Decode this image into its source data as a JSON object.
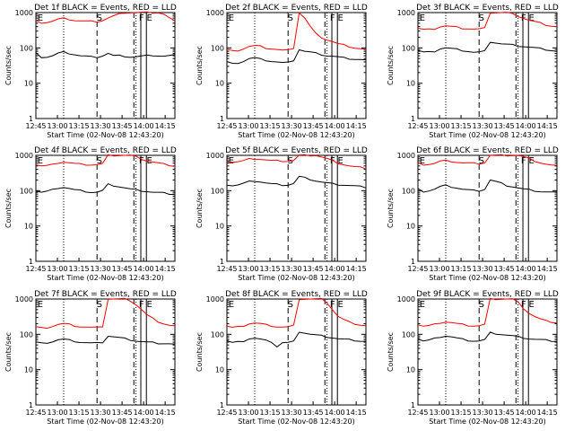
{
  "figure": {
    "background": "#ffffff",
    "axis_color": "#000000",
    "events_color": "#000000",
    "lld_color": "#ff0000"
  },
  "chart_data": [
    {
      "type": "line",
      "title": "Det 1f BLACK = Events, RED = LLD",
      "ylabel": "Counts/sec",
      "xlabel": "Start Time (02-Nov-08 12:43:20)",
      "yscale": "log",
      "ylim": [
        1,
        1000
      ],
      "ytick_labels": [
        "1",
        "10",
        "100",
        "1000"
      ],
      "xtick_labels": [
        "12:45",
        "13:00",
        "13:15",
        "13:30",
        "13:45",
        "14:00",
        "14:15"
      ],
      "markers": [
        "E",
        "S",
        "F",
        "E"
      ],
      "series": [
        {
          "name": "Events",
          "color": "#000000",
          "values": [
            70,
            55,
            55,
            60,
            70,
            75,
            70,
            65,
            60,
            58,
            55,
            55,
            60,
            70,
            60,
            60,
            58,
            55,
            56,
            58,
            60,
            62,
            60,
            58,
            60,
            62
          ]
        },
        {
          "name": "LLD",
          "color": "#ff0000",
          "values": [
            580,
            520,
            530,
            570,
            650,
            680,
            650,
            600,
            580,
            570,
            560,
            560,
            600,
            700,
            800,
            900,
            1000,
            1000,
            1000,
            1000,
            1000,
            1000,
            1000,
            900,
            700,
            560
          ]
        }
      ]
    },
    {
      "type": "line",
      "title": "Det 2f BLACK = Events, RED = LLD",
      "ylabel": "Counts/sec",
      "xlabel": "Start Time (02-Nov-08 12:43:20)",
      "yscale": "log",
      "ylim": [
        1,
        1000
      ],
      "ytick_labels": [
        "1",
        "10",
        "100",
        "1000"
      ],
      "xtick_labels": [
        "12:45",
        "13:00",
        "13:15",
        "13:30",
        "13:45",
        "14:00",
        "14:15"
      ],
      "markers": [
        "E",
        "S",
        "F",
        "E"
      ],
      "series": [
        {
          "name": "Events",
          "color": "#000000",
          "values": [
            40,
            35,
            38,
            42,
            50,
            52,
            48,
            45,
            42,
            40,
            38,
            38,
            45,
            90,
            80,
            75,
            70,
            65,
            60,
            58,
            55,
            52,
            50,
            48,
            47,
            45
          ]
        },
        {
          "name": "LLD",
          "color": "#ff0000",
          "values": [
            90,
            80,
            85,
            95,
            110,
            115,
            110,
            100,
            95,
            90,
            85,
            85,
            100,
            1000,
            700,
            400,
            250,
            200,
            170,
            150,
            130,
            120,
            110,
            100,
            95,
            90
          ]
        }
      ]
    },
    {
      "type": "line",
      "title": "Det 3f BLACK = Events, RED = LLD",
      "ylabel": "Counts/sec",
      "xlabel": "Start Time (02-Nov-08 12:43:20)",
      "yscale": "log",
      "ylim": [
        1,
        1000
      ],
      "ytick_labels": [
        "1",
        "10",
        "100",
        "1000"
      ],
      "xtick_labels": [
        "12:45",
        "13:00",
        "13:15",
        "13:30",
        "13:45",
        "14:00",
        "14:15"
      ],
      "markers": [
        "E",
        "S",
        "F",
        "E"
      ],
      "series": [
        {
          "name": "Events",
          "color": "#000000",
          "values": [
            85,
            75,
            75,
            80,
            95,
            100,
            95,
            90,
            85,
            80,
            75,
            75,
            80,
            150,
            140,
            130,
            125,
            120,
            115,
            110,
            105,
            100,
            95,
            90,
            85,
            80
          ]
        },
        {
          "name": "LLD",
          "color": "#ff0000",
          "values": [
            360,
            330,
            330,
            350,
            400,
            420,
            400,
            380,
            360,
            350,
            340,
            340,
            360,
            1000,
            1000,
            1000,
            1000,
            900,
            800,
            700,
            600,
            550,
            500,
            450,
            420,
            400
          ]
        }
      ]
    },
    {
      "type": "line",
      "title": "Det 4f BLACK = Events, RED = LLD",
      "ylabel": "Counts/sec",
      "xlabel": "Start Time (02-Nov-08 12:43:20)",
      "yscale": "log",
      "ylim": [
        1,
        1000
      ],
      "ytick_labels": [
        "1",
        "10",
        "100",
        "1000"
      ],
      "xtick_labels": [
        "12:45",
        "13:00",
        "13:15",
        "13:30",
        "13:45",
        "14:00",
        "14:15"
      ],
      "markers": [
        "E",
        "S",
        "F",
        "E"
      ],
      "series": [
        {
          "name": "Events",
          "color": "#000000",
          "values": [
            100,
            90,
            95,
            105,
            120,
            125,
            115,
            105,
            100,
            95,
            90,
            90,
            100,
            150,
            140,
            130,
            120,
            110,
            105,
            100,
            95,
            90,
            88,
            85,
            82,
            80
          ]
        },
        {
          "name": "LLD",
          "color": "#ff0000",
          "values": [
            550,
            500,
            510,
            540,
            620,
            650,
            620,
            580,
            560,
            550,
            540,
            540,
            580,
            1000,
            1000,
            1000,
            1000,
            1000,
            900,
            800,
            700,
            650,
            600,
            560,
            530,
            500
          ]
        }
      ]
    },
    {
      "type": "line",
      "title": "Det 5f BLACK = Events, RED = LLD",
      "ylabel": "Counts/sec",
      "xlabel": "Start Time (02-Nov-08 12:43:20)",
      "yscale": "log",
      "ylim": [
        1,
        1000
      ],
      "ytick_labels": [
        "1",
        "10",
        "100",
        "1000"
      ],
      "xtick_labels": [
        "12:45",
        "13:00",
        "13:15",
        "13:30",
        "13:45",
        "14:00",
        "14:15"
      ],
      "markers": [
        "E",
        "S",
        "F",
        "E"
      ],
      "series": [
        {
          "name": "Events",
          "color": "#000000",
          "values": [
            150,
            140,
            145,
            160,
            180,
            190,
            180,
            165,
            155,
            150,
            145,
            145,
            160,
            250,
            230,
            210,
            190,
            175,
            165,
            155,
            150,
            145,
            140,
            135,
            130,
            125
          ]
        },
        {
          "name": "LLD",
          "color": "#ff0000",
          "values": [
            700,
            650,
            660,
            700,
            780,
            800,
            780,
            740,
            710,
            700,
            690,
            690,
            720,
            1000,
            1000,
            1000,
            1000,
            900,
            800,
            700,
            600,
            550,
            500,
            470,
            450,
            430
          ]
        }
      ]
    },
    {
      "type": "line",
      "title": "Det 6f BLACK = Events, RED = LLD",
      "ylabel": "Counts/sec",
      "xlabel": "Start Time (02-Nov-08 12:43:20)",
      "yscale": "log",
      "ylim": [
        1,
        1000
      ],
      "ytick_labels": [
        "1",
        "10",
        "100",
        "1000"
      ],
      "xtick_labels": [
        "12:45",
        "13:00",
        "13:15",
        "13:30",
        "13:45",
        "14:00",
        "14:15"
      ],
      "markers": [
        "E",
        "S",
        "F",
        "E"
      ],
      "series": [
        {
          "name": "Events",
          "color": "#000000",
          "values": [
            110,
            95,
            100,
            110,
            130,
            140,
            130,
            120,
            110,
            105,
            100,
            100,
            110,
            200,
            180,
            160,
            140,
            130,
            120,
            110,
            105,
            100,
            95,
            92,
            90,
            88
          ]
        },
        {
          "name": "LLD",
          "color": "#ff0000",
          "values": [
            600,
            550,
            560,
            590,
            680,
            700,
            680,
            640,
            610,
            600,
            590,
            590,
            620,
            1000,
            1000,
            1000,
            1000,
            1000,
            1000,
            900,
            800,
            700,
            620,
            560,
            520,
            500
          ]
        }
      ]
    },
    {
      "type": "line",
      "title": "Det 7f BLACK = Events, RED = LLD",
      "ylabel": "Counts/sec",
      "xlabel": "Start Time (02-Nov-08 12:43:20)",
      "yscale": "log",
      "ylim": [
        1,
        1000
      ],
      "ytick_labels": [
        "1",
        "10",
        "100",
        "1000"
      ],
      "xtick_labels": [
        "12:45",
        "13:00",
        "13:15",
        "13:30",
        "13:45",
        "14:00",
        "14:15"
      ],
      "markers": [
        "E",
        "S",
        "F",
        "E"
      ],
      "series": [
        {
          "name": "Events",
          "color": "#000000",
          "values": [
            60,
            55,
            58,
            62,
            70,
            72,
            68,
            64,
            60,
            58,
            56,
            56,
            60,
            90,
            85,
            80,
            75,
            70,
            65,
            62,
            60,
            58,
            56,
            55,
            54,
            52
          ]
        },
        {
          "name": "LLD",
          "color": "#ff0000",
          "values": [
            160,
            150,
            155,
            170,
            190,
            200,
            190,
            175,
            165,
            160,
            155,
            155,
            170,
            1000,
            1000,
            1000,
            1000,
            900,
            700,
            500,
            350,
            280,
            230,
            200,
            180,
            170
          ]
        }
      ]
    },
    {
      "type": "line",
      "title": "Det 8f BLACK = Events, RED = LLD",
      "ylabel": "Counts/sec",
      "xlabel": "Start Time (02-Nov-08 12:43:20)",
      "yscale": "log",
      "ylim": [
        1,
        1000
      ],
      "ytick_labels": [
        "1",
        "10",
        "100",
        "1000"
      ],
      "xtick_labels": [
        "12:45",
        "13:00",
        "13:15",
        "13:30",
        "13:45",
        "14:00",
        "14:15"
      ],
      "markers": [
        "E",
        "S",
        "F",
        "E"
      ],
      "series": [
        {
          "name": "Events",
          "color": "#000000",
          "values": [
            65,
            58,
            60,
            65,
            75,
            78,
            72,
            66,
            62,
            45,
            58,
            58,
            62,
            120,
            110,
            100,
            95,
            90,
            85,
            80,
            75,
            72,
            70,
            68,
            65,
            63
          ]
        },
        {
          "name": "LLD",
          "color": "#ff0000",
          "values": [
            170,
            155,
            160,
            175,
            200,
            210,
            200,
            185,
            175,
            165,
            160,
            160,
            175,
            1000,
            1000,
            1000,
            1000,
            1000,
            800,
            500,
            320,
            260,
            220,
            200,
            185,
            175
          ]
        }
      ]
    },
    {
      "type": "line",
      "title": "Det 9f BLACK = Events, RED = LLD",
      "ylabel": "Counts/sec",
      "xlabel": "Start Time (02-Nov-08 12:43:20)",
      "yscale": "log",
      "ylim": [
        1,
        1000
      ],
      "ytick_labels": [
        "1",
        "10",
        "100",
        "1000"
      ],
      "xtick_labels": [
        "12:45",
        "13:00",
        "13:15",
        "13:30",
        "13:45",
        "14:00",
        "14:15"
      ],
      "markers": [
        "E",
        "S",
        "F",
        "E"
      ],
      "series": [
        {
          "name": "Events",
          "color": "#000000",
          "values": [
            75,
            65,
            68,
            75,
            85,
            90,
            85,
            78,
            72,
            68,
            65,
            65,
            70,
            110,
            105,
            100,
            95,
            90,
            85,
            80,
            75,
            72,
            70,
            68,
            66,
            64
          ]
        },
        {
          "name": "LLD",
          "color": "#ff0000",
          "values": [
            190,
            170,
            175,
            190,
            215,
            225,
            215,
            200,
            190,
            180,
            175,
            175,
            190,
            1000,
            1000,
            1000,
            1000,
            1000,
            800,
            550,
            400,
            320,
            270,
            240,
            225,
            215
          ]
        }
      ]
    }
  ]
}
